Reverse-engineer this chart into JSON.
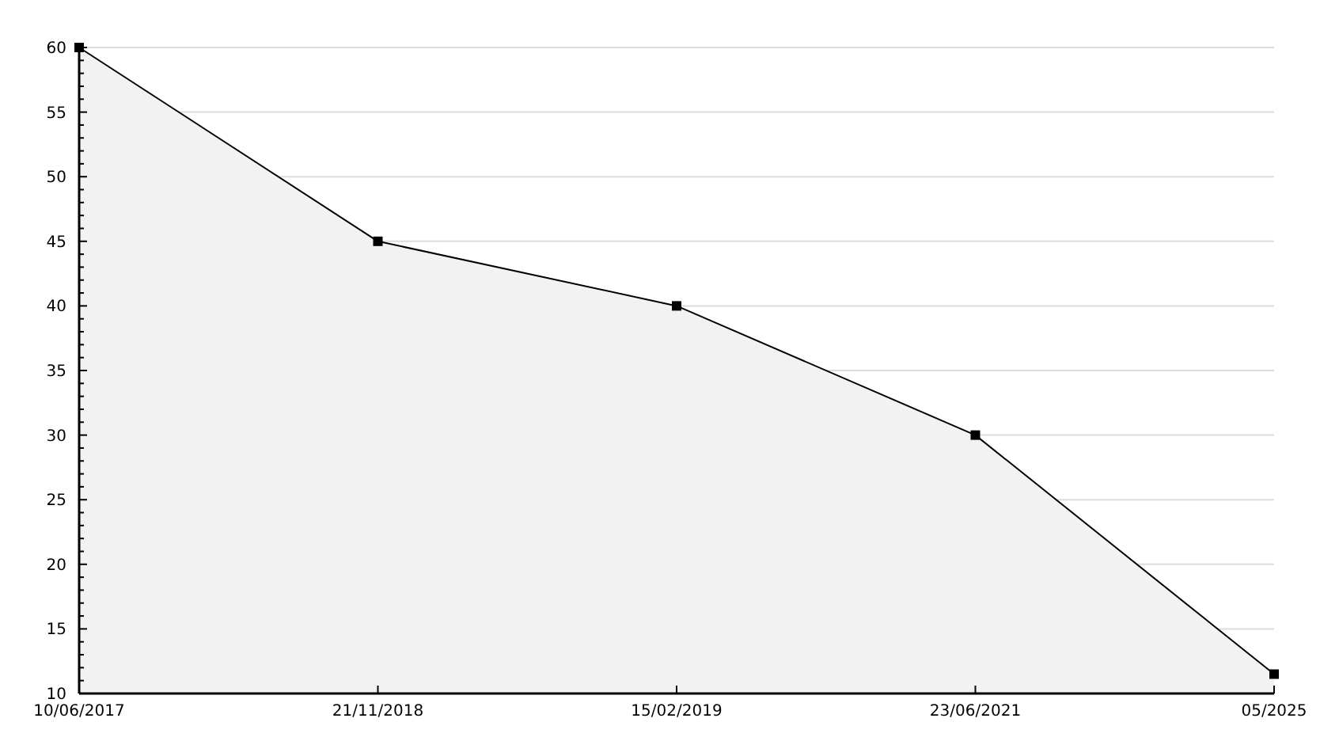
{
  "chart_data": {
    "type": "area",
    "categories": [
      "10/06/2017",
      "21/11/2018",
      "15/02/2019",
      "23/06/2021",
      "05/2025"
    ],
    "series": [
      {
        "color": "#000000",
        "values": [
          60,
          45,
          40,
          30,
          11.5
        ]
      }
    ],
    "ylim": [
      10,
      60
    ],
    "yticks": [
      10,
      {
        "value": 11,
        "label": null
      },
      {
        "value": 12,
        "label": null
      },
      {
        "value": 13,
        "label": null
      },
      {
        "value": 14,
        "label": null
      },
      15,
      {
        "value": 16,
        "label": null
      },
      {
        "value": 17,
        "label": null
      },
      {
        "value": 18,
        "label": null
      },
      {
        "value": 19,
        "label": null
      },
      20,
      {
        "value": 21,
        "label": null
      },
      {
        "value": 22,
        "label": null
      },
      {
        "value": 23,
        "label": null
      },
      {
        "value": 24,
        "label": null
      },
      25,
      {
        "value": 26,
        "label": null
      },
      {
        "value": 27,
        "label": null
      },
      {
        "value": 28,
        "label": null
      },
      {
        "value": 29,
        "label": null
      },
      30,
      {
        "value": 31,
        "label": null
      },
      {
        "value": 32,
        "label": null
      },
      {
        "value": 33,
        "label": null
      },
      {
        "value": 34,
        "label": null
      },
      35,
      {
        "value": 36,
        "label": null
      },
      {
        "value": 37,
        "label": null
      },
      {
        "value": 38,
        "label": null
      },
      {
        "value": 39,
        "label": null
      },
      40,
      {
        "value": 41,
        "label": null
      },
      {
        "value": 42,
        "label": null
      },
      {
        "value": 43,
        "label": null
      },
      {
        "value": 44,
        "label": null
      },
      45,
      {
        "value": 46,
        "label": null
      },
      {
        "value": 47,
        "label": null
      },
      {
        "value": 48,
        "label": null
      },
      {
        "value": 49,
        "label": null
      },
      50,
      {
        "value": 51,
        "label": null
      },
      {
        "value": 52,
        "label": null
      },
      {
        "value": 53,
        "label": null
      },
      {
        "value": 54,
        "label": null
      },
      55,
      {
        "value": 56,
        "label": null
      },
      {
        "value": 57,
        "label": null
      },
      {
        "value": 58,
        "label": null
      },
      {
        "value": 59,
        "label": null
      },
      60
    ],
    "grid": "y",
    "marker": "square",
    "line_style": "solid"
  }
}
